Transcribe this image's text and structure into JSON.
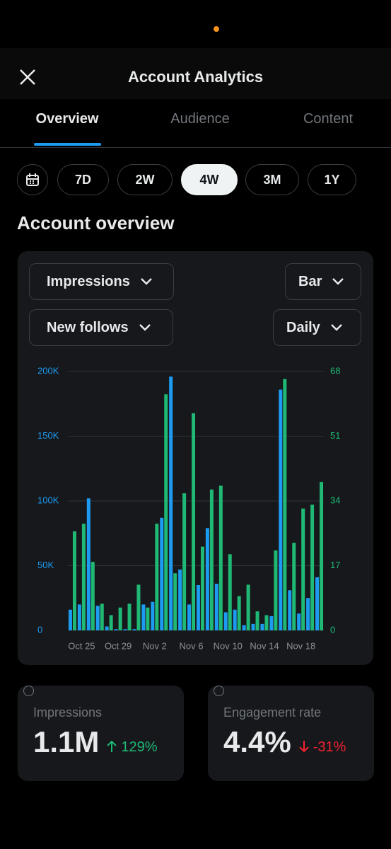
{
  "header": {
    "title": "Account Analytics"
  },
  "tabs": {
    "items": [
      "Overview",
      "Audience",
      "Content"
    ],
    "active_index": 0
  },
  "periods": {
    "items": [
      "7D",
      "2W",
      "4W",
      "3M",
      "1Y"
    ],
    "active_index": 2
  },
  "section_title": "Account overview",
  "controls": {
    "chart_type": "Bar",
    "interval": "Daily"
  },
  "chart_data": {
    "type": "bar",
    "categories": [
      null,
      "Oct 25",
      null,
      null,
      null,
      "Oct 29",
      null,
      null,
      null,
      "Nov 2",
      null,
      null,
      null,
      "Nov 6",
      null,
      null,
      null,
      "Nov 10",
      null,
      null,
      null,
      "Nov 14",
      null,
      null,
      null,
      "Nov 18",
      null,
      null
    ],
    "series": [
      {
        "name": "Impressions",
        "color": "#1d9bf0",
        "values": [
          16000,
          20000,
          102000,
          19000,
          3000,
          1000,
          1000,
          1000,
          20000,
          22000,
          87000,
          196000,
          47000,
          20000,
          35000,
          79000,
          36000,
          14000,
          16000,
          4000,
          5000,
          5000,
          11000,
          186000,
          31000,
          13000,
          25000,
          41000
        ]
      },
      {
        "name": "New follows",
        "color": "#1fb874",
        "axis": "y2",
        "values": [
          26,
          28,
          18,
          7,
          4,
          6,
          7,
          12,
          6,
          28,
          62,
          15,
          36,
          57,
          22,
          37,
          38,
          20,
          9,
          12,
          5,
          4,
          21,
          66,
          23,
          32,
          33,
          39
        ]
      }
    ],
    "ylim": [
      0,
      200000
    ],
    "yticks": [
      0,
      {
        "value": 50000,
        "label": "50K"
      },
      {
        "value": 100000,
        "label": "100K"
      },
      {
        "value": 150000,
        "label": "150K"
      },
      {
        "value": 200000,
        "label": "200K"
      }
    ],
    "y2lim": [
      0,
      68
    ],
    "y2ticks": [
      0,
      17,
      34,
      51,
      68
    ],
    "grid": true
  },
  "stats": [
    {
      "label": "Impressions",
      "value": "1.1M",
      "change": "129%",
      "direction": "up"
    },
    {
      "label": "Engagement rate",
      "value": "4.4%",
      "change": "-31%",
      "direction": "down"
    }
  ]
}
